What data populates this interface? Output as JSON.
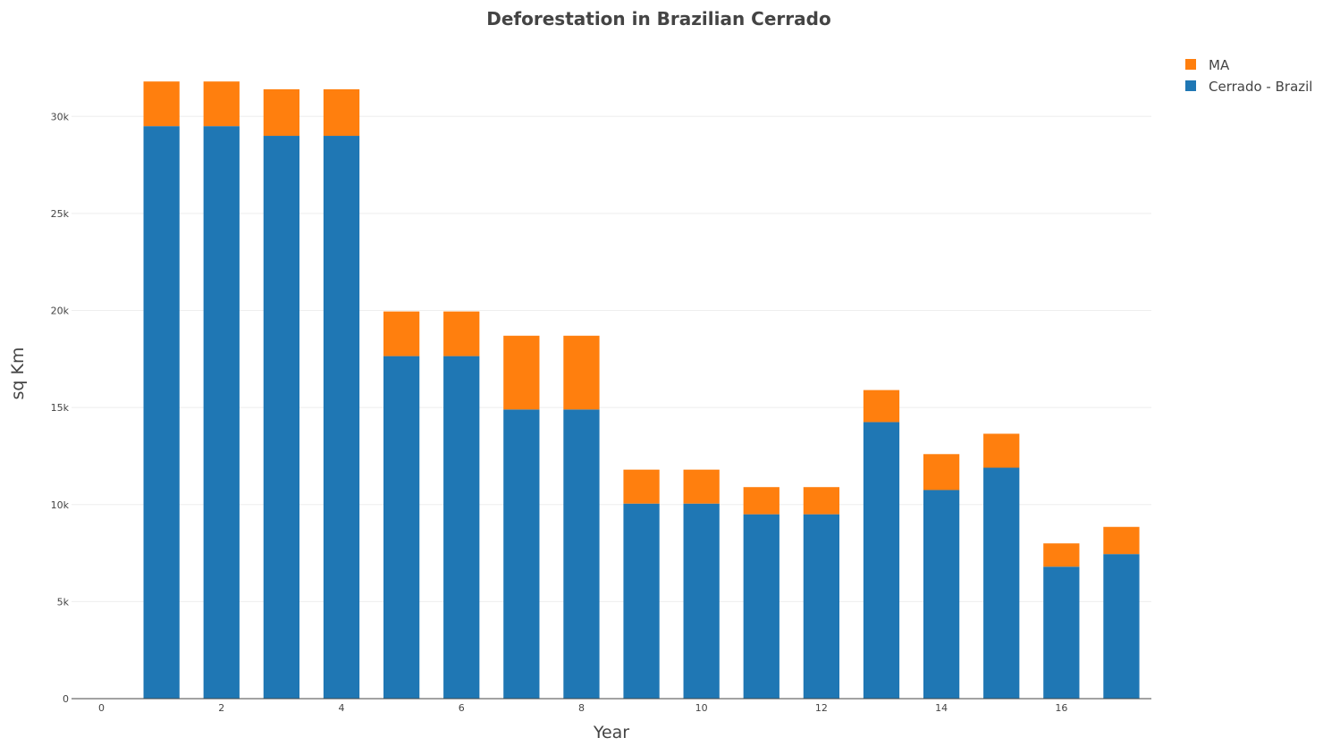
{
  "chart_data": {
    "type": "bar",
    "barmode": "stack",
    "title": "Deforestation in Brazilian Cerrado",
    "xlabel": "Year",
    "ylabel": "sq Km",
    "xlim": [
      -0.5,
      17.5
    ],
    "ylim": [
      0,
      32500
    ],
    "x_ticks": [
      0,
      2,
      4,
      6,
      8,
      10,
      12,
      14,
      16
    ],
    "y_ticks": [
      0,
      5000,
      10000,
      15000,
      20000,
      25000,
      30000
    ],
    "y_tick_labels": [
      "0",
      "5k",
      "10k",
      "15k",
      "20k",
      "25k",
      "30k"
    ],
    "grid": true,
    "legend_position": "top-right",
    "x": [
      1,
      2,
      3,
      4,
      5,
      6,
      7,
      8,
      9,
      10,
      11,
      12,
      13,
      14,
      15,
      16,
      17
    ],
    "series": [
      {
        "name": "Cerrado - Brazil",
        "color": "#1f77b4",
        "values": [
          29500,
          29500,
          29000,
          29000,
          17650,
          17650,
          14900,
          14900,
          10050,
          10050,
          9500,
          9500,
          14250,
          10750,
          11900,
          6800,
          7450
        ]
      },
      {
        "name": "MA",
        "color": "#ff7f0e",
        "values": [
          2300,
          2300,
          2400,
          2400,
          2300,
          2300,
          3800,
          3800,
          1750,
          1750,
          1400,
          1400,
          1650,
          1850,
          1750,
          1200,
          1400
        ]
      }
    ],
    "legend_order": [
      "MA",
      "Cerrado - Brazil"
    ]
  }
}
